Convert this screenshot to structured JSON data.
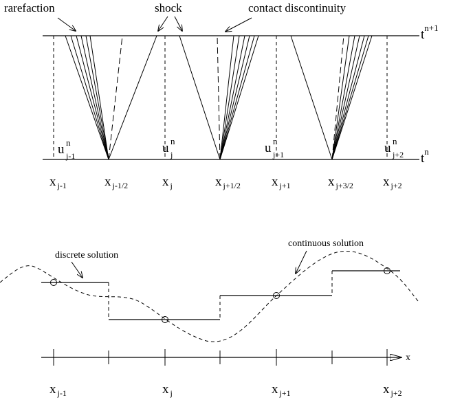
{
  "annotations": {
    "rarefaction": "rarefaction",
    "shock": "shock",
    "contact": "contact discontinuity",
    "discrete": "discrete solution",
    "continuous": "continuous solution"
  },
  "time": {
    "upper": {
      "base": "t",
      "sup": "n+1"
    },
    "lower": {
      "base": "t",
      "sup": "n"
    }
  },
  "cell_values": [
    {
      "base": "u",
      "sup": "n",
      "sub": "j-1"
    },
    {
      "base": "u",
      "sup": "n",
      "sub": "j"
    },
    {
      "base": "u",
      "sup": "n",
      "sub": "j+1"
    },
    {
      "base": "u",
      "sup": "n",
      "sub": "j+2"
    }
  ],
  "top_axis_labels": [
    {
      "base": "x",
      "sub": "j-1"
    },
    {
      "base": "x",
      "sub": "j-1/2"
    },
    {
      "base": "x",
      "sub": "j"
    },
    {
      "base": "x",
      "sub": "j+1/2"
    },
    {
      "base": "x",
      "sub": "j+1"
    },
    {
      "base": "x",
      "sub": "j+3/2"
    },
    {
      "base": "x",
      "sub": "j+2"
    }
  ],
  "bottom_axis_labels": [
    {
      "base": "x",
      "sub": "j-1"
    },
    {
      "base": "x",
      "sub": "j"
    },
    {
      "base": "x",
      "sub": "j+1"
    },
    {
      "base": "x",
      "sub": "j+2"
    }
  ],
  "axis_name": "x"
}
